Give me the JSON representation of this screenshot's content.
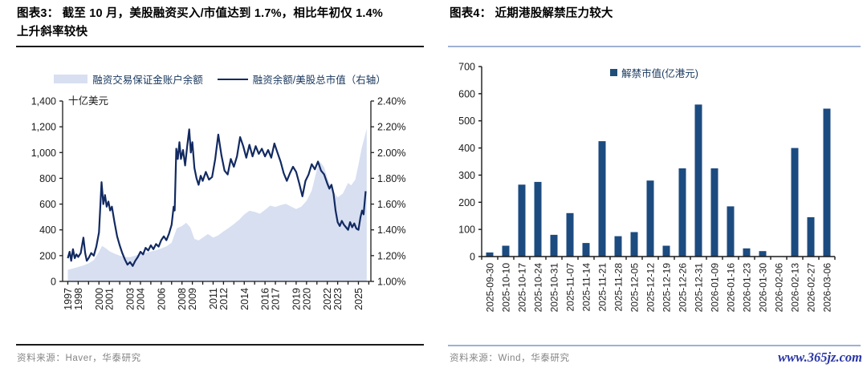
{
  "figure3": {
    "title_l1": "图表3：  截至 10 月，美股融资买入/市值达到 1.7%，相比年初仅 1.4%",
    "title_l2": "上升斜率较快",
    "legend_area": "融资交易保证金账户余额",
    "legend_line": "融资余额/美股总市值（右轴）",
    "source": "资料来源：Haver，华泰研究"
  },
  "figure4": {
    "title": "图表4：  近期港股解禁压力较大",
    "legend": "解禁市值(亿港元)",
    "source": "资料来源：Wind，华泰研究"
  },
  "watermark": "www.365jz.com",
  "colors": {
    "area_fill": "#d7dff1",
    "line": "#122a61",
    "bar": "#1c4b80",
    "legend_square": "#1f4e79",
    "axis": "#1a1a1a",
    "rule_blue": "#9fb0d2",
    "watermark_blue": "#2936a5"
  },
  "chart_data": [
    {
      "type": "area+line combo",
      "title": "截至10月，美股融资买入/市值达到1.7%，相比年初仅1.4% 上升斜率较快",
      "unit_label": "十亿美元",
      "x_range": [
        1996.5,
        2026.2
      ],
      "x_year_ticks_from": 1997,
      "x_year_ticks_to": 2026,
      "x_tick_labels": [
        "1997",
        "1998",
        "2000",
        "2001",
        "2003",
        "2004",
        "2006",
        "2008",
        "2009",
        "2011",
        "2012",
        "2014",
        "2016",
        "2017",
        "2019",
        "2020",
        "2022",
        "2023",
        "2025"
      ],
      "left_axis": {
        "min": 0,
        "max": 1400,
        "step": 200,
        "title": "十亿美元"
      },
      "right_axis": {
        "min": 1.0,
        "max": 2.4,
        "step": 0.2,
        "format": "percent"
      },
      "grid": false,
      "legend_position": "top",
      "series": [
        {
          "name": "融资交易保证金账户余额",
          "type": "area",
          "axis": "left",
          "points": [
            [
              1997.0,
              90
            ],
            [
              1997.5,
              100
            ],
            [
              1998.0,
              112
            ],
            [
              1998.5,
              124
            ],
            [
              1999.0,
              140
            ],
            [
              1999.5,
              165
            ],
            [
              2000.0,
              230
            ],
            [
              2000.3,
              275
            ],
            [
              2000.7,
              255
            ],
            [
              2001.0,
              235
            ],
            [
              2001.5,
              215
            ],
            [
              2002.0,
              200
            ],
            [
              2002.5,
              190
            ],
            [
              2003.0,
              188
            ],
            [
              2003.5,
              200
            ],
            [
              2004.0,
              215
            ],
            [
              2004.5,
              222
            ],
            [
              2005.0,
              232
            ],
            [
              2005.5,
              242
            ],
            [
              2006.0,
              255
            ],
            [
              2006.5,
              272
            ],
            [
              2007.0,
              300
            ],
            [
              2007.5,
              412
            ],
            [
              2008.0,
              430
            ],
            [
              2008.4,
              455
            ],
            [
              2008.8,
              420
            ],
            [
              2009.2,
              330
            ],
            [
              2009.6,
              318
            ],
            [
              2010.0,
              340
            ],
            [
              2010.5,
              368
            ],
            [
              2011.0,
              340
            ],
            [
              2011.5,
              358
            ],
            [
              2012.0,
              388
            ],
            [
              2012.5,
              415
            ],
            [
              2013.0,
              445
            ],
            [
              2013.5,
              478
            ],
            [
              2014.0,
              520
            ],
            [
              2014.5,
              548
            ],
            [
              2015.0,
              540
            ],
            [
              2015.5,
              525
            ],
            [
              2016.0,
              555
            ],
            [
              2016.5,
              588
            ],
            [
              2017.0,
              578
            ],
            [
              2017.5,
              592
            ],
            [
              2018.0,
              602
            ],
            [
              2018.5,
              582
            ],
            [
              2019.0,
              562
            ],
            [
              2019.5,
              580
            ],
            [
              2020.0,
              625
            ],
            [
              2020.5,
              705
            ],
            [
              2021.0,
              870
            ],
            [
              2021.3,
              930
            ],
            [
              2021.7,
              885
            ],
            [
              2022.0,
              805
            ],
            [
              2022.5,
              705
            ],
            [
              2023.0,
              652
            ],
            [
              2023.5,
              682
            ],
            [
              2024.0,
              765
            ],
            [
              2024.3,
              745
            ],
            [
              2024.7,
              790
            ],
            [
              2025.0,
              905
            ],
            [
              2025.3,
              1030
            ],
            [
              2025.8,
              1185
            ]
          ]
        },
        {
          "name": "融资余额/美股总市值（右轴）",
          "type": "line",
          "axis": "right",
          "points": [
            [
              1997.0,
              1.18
            ],
            [
              1997.17,
              1.23
            ],
            [
              1997.33,
              1.16
            ],
            [
              1997.5,
              1.25
            ],
            [
              1997.67,
              1.18
            ],
            [
              1997.83,
              1.21
            ],
            [
              1998.0,
              1.19
            ],
            [
              1998.25,
              1.22
            ],
            [
              1998.5,
              1.34
            ],
            [
              1998.67,
              1.22
            ],
            [
              1998.83,
              1.16
            ],
            [
              1999.0,
              1.18
            ],
            [
              1999.25,
              1.22
            ],
            [
              1999.5,
              1.2
            ],
            [
              1999.75,
              1.27
            ],
            [
              2000.0,
              1.38
            ],
            [
              2000.25,
              1.77
            ],
            [
              2000.42,
              1.6
            ],
            [
              2000.58,
              1.67
            ],
            [
              2000.75,
              1.58
            ],
            [
              2000.92,
              1.62
            ],
            [
              2001.08,
              1.55
            ],
            [
              2001.25,
              1.58
            ],
            [
              2001.5,
              1.46
            ],
            [
              2001.75,
              1.35
            ],
            [
              2002.0,
              1.28
            ],
            [
              2002.25,
              1.22
            ],
            [
              2002.5,
              1.17
            ],
            [
              2002.75,
              1.13
            ],
            [
              2003.0,
              1.15
            ],
            [
              2003.25,
              1.12
            ],
            [
              2003.5,
              1.16
            ],
            [
              2003.75,
              1.19
            ],
            [
              2004.0,
              1.23
            ],
            [
              2004.25,
              1.21
            ],
            [
              2004.5,
              1.26
            ],
            [
              2004.75,
              1.24
            ],
            [
              2005.0,
              1.28
            ],
            [
              2005.25,
              1.25
            ],
            [
              2005.5,
              1.29
            ],
            [
              2005.75,
              1.27
            ],
            [
              2006.0,
              1.32
            ],
            [
              2006.25,
              1.35
            ],
            [
              2006.5,
              1.32
            ],
            [
              2006.75,
              1.37
            ],
            [
              2007.0,
              1.44
            ],
            [
              2007.2,
              1.58
            ],
            [
              2007.3,
              1.55
            ],
            [
              2007.45,
              2.03
            ],
            [
              2007.6,
              1.95
            ],
            [
              2007.75,
              2.08
            ],
            [
              2007.9,
              1.95
            ],
            [
              2008.1,
              2.02
            ],
            [
              2008.3,
              1.9
            ],
            [
              2008.5,
              2.05
            ],
            [
              2008.7,
              2.18
            ],
            [
              2008.85,
              2.0
            ],
            [
              2009.0,
              2.08
            ],
            [
              2009.2,
              1.88
            ],
            [
              2009.4,
              1.8
            ],
            [
              2009.6,
              1.75
            ],
            [
              2009.8,
              1.82
            ],
            [
              2010.0,
              1.78
            ],
            [
              2010.3,
              1.85
            ],
            [
              2010.6,
              1.79
            ],
            [
              2010.9,
              1.81
            ],
            [
              2011.2,
              1.95
            ],
            [
              2011.5,
              2.14
            ],
            [
              2011.8,
              1.98
            ],
            [
              2012.1,
              1.86
            ],
            [
              2012.4,
              1.83
            ],
            [
              2012.7,
              1.95
            ],
            [
              2013.0,
              1.89
            ],
            [
              2013.3,
              1.97
            ],
            [
              2013.6,
              2.12
            ],
            [
              2013.9,
              2.05
            ],
            [
              2014.2,
              1.96
            ],
            [
              2014.5,
              2.06
            ],
            [
              2014.8,
              1.97
            ],
            [
              2015.1,
              2.05
            ],
            [
              2015.4,
              1.99
            ],
            [
              2015.7,
              2.03
            ],
            [
              2016.0,
              1.97
            ],
            [
              2016.3,
              2.02
            ],
            [
              2016.6,
              1.96
            ],
            [
              2016.9,
              2.07
            ],
            [
              2017.2,
              2.0
            ],
            [
              2017.5,
              1.93
            ],
            [
              2017.8,
              1.84
            ],
            [
              2018.1,
              1.78
            ],
            [
              2018.4,
              1.84
            ],
            [
              2018.7,
              1.89
            ],
            [
              2019.0,
              1.85
            ],
            [
              2019.3,
              1.76
            ],
            [
              2019.6,
              1.66
            ],
            [
              2019.9,
              1.78
            ],
            [
              2020.2,
              1.83
            ],
            [
              2020.5,
              1.91
            ],
            [
              2020.8,
              1.87
            ],
            [
              2021.1,
              1.93
            ],
            [
              2021.4,
              1.86
            ],
            [
              2021.7,
              1.83
            ],
            [
              2022.0,
              1.76
            ],
            [
              2022.2,
              1.72
            ],
            [
              2022.4,
              1.75
            ],
            [
              2022.6,
              1.68
            ],
            [
              2022.8,
              1.55
            ],
            [
              2023.0,
              1.46
            ],
            [
              2023.2,
              1.43
            ],
            [
              2023.4,
              1.47
            ],
            [
              2023.6,
              1.44
            ],
            [
              2023.8,
              1.42
            ],
            [
              2024.0,
              1.4
            ],
            [
              2024.2,
              1.46
            ],
            [
              2024.4,
              1.42
            ],
            [
              2024.6,
              1.45
            ],
            [
              2024.8,
              1.41
            ],
            [
              2025.0,
              1.4
            ],
            [
              2025.2,
              1.5
            ],
            [
              2025.35,
              1.55
            ],
            [
              2025.5,
              1.52
            ],
            [
              2025.7,
              1.7
            ]
          ]
        }
      ]
    },
    {
      "type": "bar",
      "title": "近期港股解禁压力较大",
      "legend": "解禁市值(亿港元)",
      "categories": [
        "2025-09-30",
        "2025-10-10",
        "2025-10-17",
        "2025-10-24",
        "2025-10-31",
        "2025-11-07",
        "2025-11-14",
        "2025-11-21",
        "2025-11-28",
        "2025-12-05",
        "2025-12-12",
        "2025-12-19",
        "2025-12-26",
        "2025-12-31",
        "2026-01-09",
        "2026-01-16",
        "2026-01-23",
        "2026-01-30",
        "2026-02-06",
        "2026-02-13",
        "2026-02-27",
        "2026-03-06"
      ],
      "values": [
        15,
        40,
        265,
        275,
        80,
        160,
        50,
        425,
        75,
        90,
        280,
        40,
        325,
        560,
        325,
        185,
        30,
        20,
        0,
        400,
        145,
        545
      ],
      "ylim": [
        0,
        700
      ],
      "ystep": 100,
      "grid": false,
      "legend_position": "top-center"
    }
  ]
}
